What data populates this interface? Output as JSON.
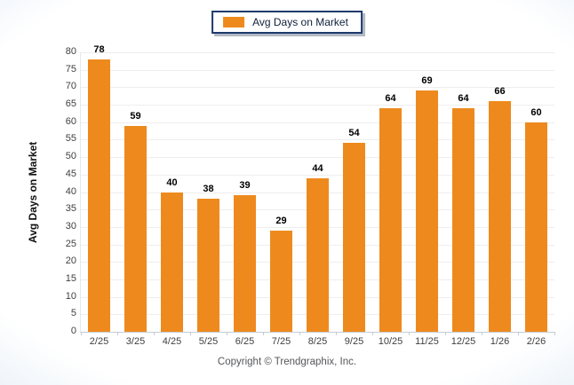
{
  "legend": {
    "label": "Avg Days on Market"
  },
  "footer": {
    "copyright": "Copyright © Trendgraphix, Inc."
  },
  "colors": {
    "bar": "#ee8a1d",
    "legend_border": "#1e3a6d",
    "gridline": "#eeeeee",
    "axis_line": "#c3ccd6",
    "tick_label": "#404040",
    "value_label": "#000000",
    "footer_text": "#55565a"
  },
  "chart_data": {
    "type": "bar",
    "title": "Avg Days on Market",
    "categories": [
      "2/25",
      "3/25",
      "4/25",
      "5/25",
      "6/25",
      "7/25",
      "8/25",
      "9/25",
      "10/25",
      "11/25",
      "12/25",
      "1/26",
      "2/26"
    ],
    "values": [
      78,
      59,
      40,
      38,
      39,
      29,
      44,
      54,
      64,
      69,
      64,
      66,
      60
    ],
    "series_name": "Avg Days on Market",
    "xlabel": "",
    "ylabel": "Avg Days on Market",
    "ylim": [
      0,
      80
    ],
    "ytick_step": 5,
    "grid": true,
    "legend_position": "top-center",
    "value_labels": true,
    "bar_color": "#ee8a1d"
  }
}
